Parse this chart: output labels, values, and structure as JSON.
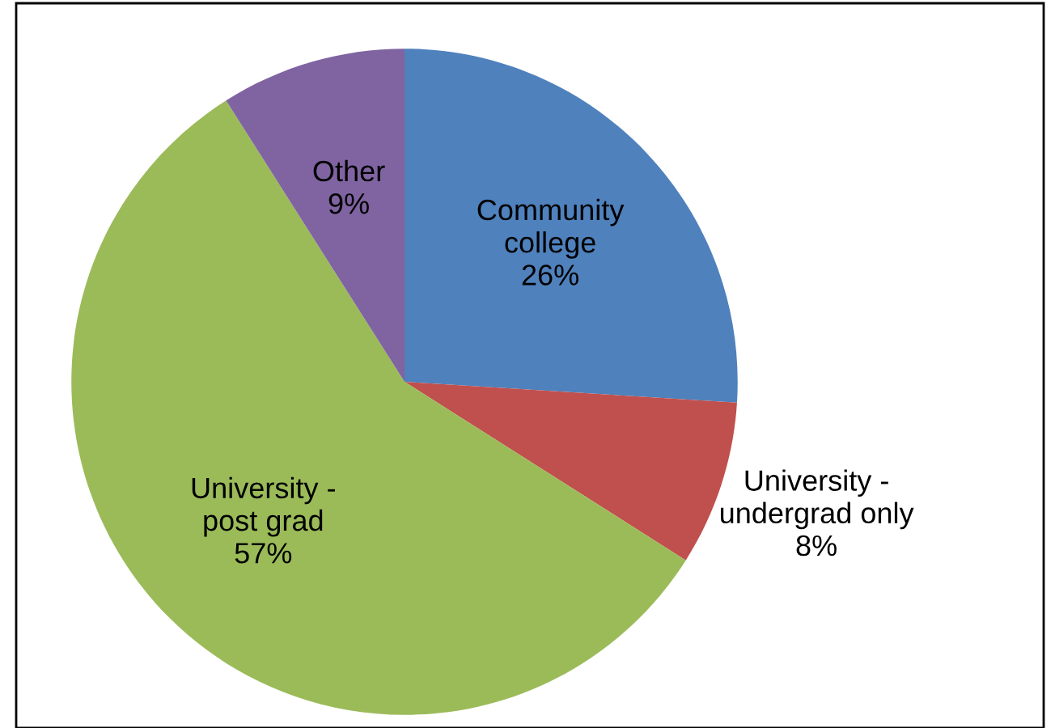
{
  "chart_data": {
    "type": "pie",
    "categories": [
      "Community\ncollege",
      "University -\nundergrad only",
      "University -\npost grad",
      "Other"
    ],
    "values": [
      26,
      8,
      57,
      9
    ],
    "colors": [
      "#4f81bd",
      "#c0504d",
      "#9bbb59",
      "#8064a2"
    ],
    "value_labels": [
      "26%",
      "8%",
      "57%",
      "9%"
    ]
  }
}
